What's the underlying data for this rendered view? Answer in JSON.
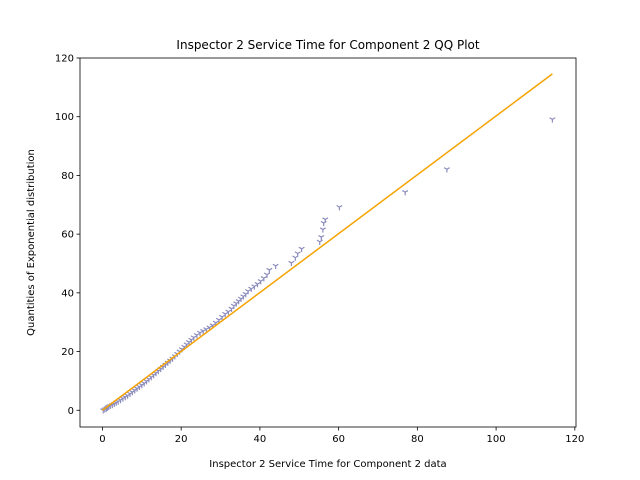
{
  "chart_data": {
    "type": "scatter",
    "title": "Inspector 2 Service Time for Component 2 QQ Plot",
    "xlabel": "Inspector 2 Service Time for Component 2 data",
    "ylabel": "Quantities of Exponential distribution",
    "xlim": [
      -5.7,
      120.3
    ],
    "ylim": [
      -5.7,
      120
    ],
    "xticks": [
      "0",
      "20",
      "40",
      "60",
      "80",
      "100",
      "120"
    ],
    "yticks": [
      "0",
      "20",
      "40",
      "60",
      "80",
      "100",
      "120"
    ],
    "xtick_values": [
      0,
      20,
      40,
      60,
      80,
      100,
      120
    ],
    "ytick_values": [
      0,
      20,
      40,
      60,
      80,
      100,
      120
    ],
    "grid": false,
    "colors": {
      "points": "#8b8bbd",
      "fit_line": "#f5a300"
    },
    "series": [
      {
        "marker": "tri-down",
        "x": [
          0.2,
          0.6,
          1.0,
          1.3,
          1.6,
          2.0,
          2.5,
          3.0,
          3.5,
          4.0,
          4.6,
          5.2,
          5.8,
          6.4,
          7.0,
          7.6,
          8.2,
          8.8,
          9.4,
          10.0,
          10.6,
          11.2,
          11.8,
          12.4,
          13.0,
          13.6,
          14.2,
          14.8,
          15.4,
          16.0,
          16.6,
          17.2,
          17.8,
          18.4,
          19.0,
          19.6,
          20.2,
          20.8,
          21.4,
          22.0,
          22.6,
          23.2,
          24.0,
          24.8,
          25.6,
          26.4,
          27.2,
          28.0,
          28.8,
          29.6,
          30.4,
          31.2,
          32.0,
          32.8,
          33.4,
          34.0,
          34.6,
          35.2,
          35.8,
          36.4,
          37.0,
          37.8,
          38.6,
          39.4,
          40.2,
          41.0,
          41.8,
          42.4,
          44.0,
          48.0,
          49.0,
          49.6,
          50.6,
          55.2,
          55.6,
          56.0,
          56.2,
          56.6,
          60.2,
          76.9,
          87.5,
          114.3
        ],
        "y": [
          0.0,
          0.3,
          0.6,
          0.9,
          1.2,
          1.5,
          1.8,
          2.2,
          2.6,
          3.0,
          3.5,
          4.0,
          4.5,
          5.0,
          5.6,
          6.2,
          6.8,
          7.4,
          8.0,
          8.6,
          9.2,
          9.9,
          10.6,
          11.3,
          12.0,
          12.7,
          13.4,
          14.1,
          14.8,
          15.5,
          16.2,
          16.9,
          17.6,
          18.4,
          19.2,
          20.0,
          20.8,
          21.6,
          22.4,
          23.2,
          24.0,
          24.8,
          25.6,
          26.4,
          27.0,
          27.6,
          28.2,
          28.9,
          29.8,
          30.8,
          31.8,
          32.8,
          33.6,
          34.6,
          35.6,
          36.4,
          37.2,
          38.0,
          38.8,
          39.6,
          40.6,
          41.4,
          42.2,
          43.0,
          44.0,
          45.0,
          46.2,
          47.8,
          49.2,
          50.2,
          52.0,
          53.4,
          55.0,
          57.4,
          59.0,
          61.6,
          63.8,
          65.0,
          69.2,
          74.3,
          82.1,
          99.1
        ]
      }
    ],
    "fit_line": {
      "x": [
        0,
        114.3
      ],
      "y": [
        0.0,
        114.6
      ]
    }
  }
}
